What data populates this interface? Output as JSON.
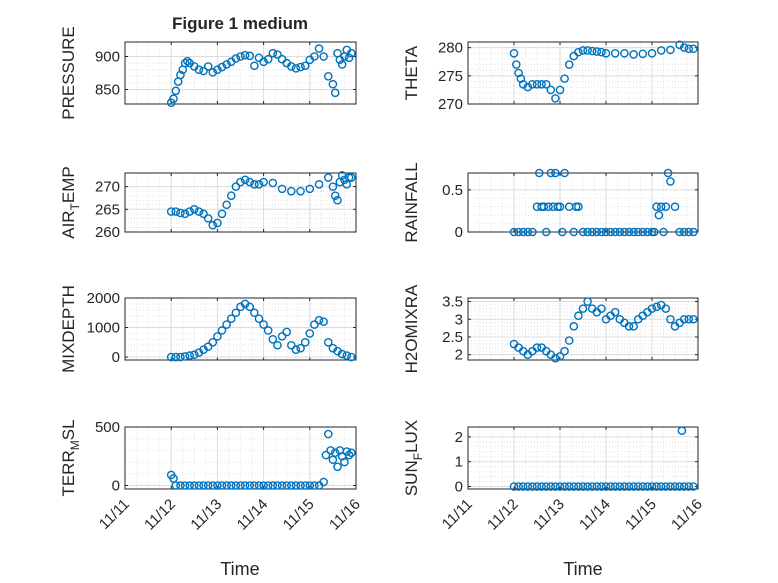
{
  "figure": {
    "title": "Figure 1 medium",
    "xlabel": "Time",
    "marker_color": "#0072bd",
    "x_ticks": [
      "11/11",
      "11/12",
      "11/13",
      "11/14",
      "11/15",
      "11/16"
    ]
  },
  "chart_data": [
    {
      "type": "scatter",
      "ylabel": "PRESSURE",
      "ylabel_sub": null,
      "xlim": [
        0,
        5
      ],
      "ylim": [
        828,
        922
      ],
      "yticks": [
        850,
        900
      ],
      "ytick_labels": [
        "850",
        "900"
      ],
      "x": [
        1.0,
        1.05,
        1.1,
        1.15,
        1.2,
        1.25,
        1.3,
        1.35,
        1.4,
        1.5,
        1.6,
        1.7,
        1.8,
        1.9,
        2.0,
        2.1,
        2.2,
        2.3,
        2.4,
        2.5,
        2.6,
        2.7,
        2.8,
        2.9,
        3.0,
        3.1,
        3.2,
        3.3,
        3.4,
        3.5,
        3.6,
        3.7,
        3.8,
        3.9,
        4.0,
        4.1,
        4.2,
        4.3,
        4.4,
        4.5,
        4.55,
        4.6,
        4.65,
        4.7,
        4.75,
        4.8,
        4.85,
        4.9
      ],
      "y": [
        830,
        836,
        848,
        862,
        872,
        880,
        890,
        893,
        890,
        885,
        880,
        878,
        885,
        876,
        880,
        884,
        888,
        892,
        897,
        900,
        902,
        901,
        886,
        898,
        892,
        896,
        905,
        903,
        896,
        890,
        885,
        882,
        884,
        886,
        895,
        900,
        912,
        900,
        870,
        858,
        845,
        905,
        895,
        888,
        900,
        910,
        898,
        905
      ]
    },
    {
      "type": "scatter",
      "ylabel": "THETA",
      "ylabel_sub": null,
      "xlim": [
        0,
        5
      ],
      "ylim": [
        270,
        281
      ],
      "yticks": [
        270,
        275,
        280
      ],
      "ytick_labels": [
        "270",
        "275",
        "280"
      ],
      "x": [
        1.0,
        1.05,
        1.1,
        1.15,
        1.2,
        1.3,
        1.4,
        1.5,
        1.6,
        1.7,
        1.8,
        1.9,
        2.0,
        2.1,
        2.2,
        2.3,
        2.4,
        2.5,
        2.6,
        2.7,
        2.8,
        2.9,
        3.0,
        3.2,
        3.4,
        3.6,
        3.8,
        4.0,
        4.2,
        4.4,
        4.6,
        4.7,
        4.8,
        4.9
      ],
      "y": [
        279.0,
        277.0,
        275.5,
        274.5,
        273.5,
        273.0,
        273.5,
        273.5,
        273.5,
        273.5,
        272.5,
        271.0,
        272.5,
        274.5,
        277.0,
        278.5,
        279.2,
        279.5,
        279.5,
        279.4,
        279.3,
        279.2,
        279.0,
        279.0,
        279.0,
        278.8,
        278.9,
        279.0,
        279.5,
        279.6,
        280.5,
        280.0,
        279.8,
        279.8
      ]
    },
    {
      "type": "scatter",
      "ylabel": "AIR",
      "ylabel_sub": "T",
      "ylabel_rest": "EMP",
      "xlim": [
        0,
        5
      ],
      "ylim": [
        260,
        273
      ],
      "yticks": [
        260,
        265,
        270
      ],
      "ytick_labels": [
        "260",
        "265",
        "270"
      ],
      "x": [
        1.0,
        1.1,
        1.2,
        1.3,
        1.4,
        1.5,
        1.6,
        1.7,
        1.8,
        1.9,
        2.0,
        2.1,
        2.2,
        2.3,
        2.4,
        2.5,
        2.6,
        2.7,
        2.8,
        2.9,
        3.0,
        3.2,
        3.4,
        3.6,
        3.8,
        4.0,
        4.2,
        4.4,
        4.5,
        4.55,
        4.6,
        4.65,
        4.7,
        4.75,
        4.8,
        4.85,
        4.9
      ],
      "y": [
        264.5,
        264.5,
        264.2,
        264.0,
        264.5,
        265.0,
        264.5,
        264.0,
        263.0,
        261.5,
        262.0,
        264.0,
        266.0,
        268.0,
        270.0,
        271.0,
        271.5,
        271.0,
        270.5,
        270.5,
        271.0,
        270.8,
        269.5,
        269.0,
        269.0,
        269.5,
        270.5,
        272.0,
        270.0,
        268.0,
        267.0,
        271.0,
        272.5,
        271.5,
        270.5,
        272.0,
        272.0
      ]
    },
    {
      "type": "scatter",
      "ylabel": "RAINFALL",
      "ylabel_sub": null,
      "xlim": [
        0,
        5
      ],
      "ylim": [
        0,
        0.7
      ],
      "yticks": [
        0,
        0.5
      ],
      "ytick_labels": [
        "0",
        "0.5"
      ],
      "x": [
        1.0,
        1.1,
        1.2,
        1.3,
        1.4,
        1.5,
        1.55,
        1.6,
        1.65,
        1.7,
        1.75,
        1.8,
        1.85,
        1.9,
        1.95,
        2.0,
        2.05,
        2.1,
        2.2,
        2.3,
        2.35,
        2.4,
        2.5,
        2.6,
        2.7,
        2.8,
        2.9,
        3.0,
        3.1,
        3.2,
        3.3,
        3.4,
        3.5,
        3.6,
        3.7,
        3.8,
        3.9,
        4.0,
        4.05,
        4.1,
        4.15,
        4.2,
        4.25,
        4.3,
        4.35,
        4.4,
        4.5,
        4.6,
        4.7,
        4.8,
        4.9
      ],
      "y": [
        0,
        0,
        0,
        0,
        0,
        0.3,
        0.7,
        0.3,
        0.3,
        0,
        0.3,
        0.7,
        0.3,
        0.7,
        0.3,
        0.3,
        0,
        0.7,
        0.3,
        0,
        0.3,
        0.3,
        0,
        0,
        0,
        0,
        0,
        0,
        0,
        0,
        0,
        0,
        0,
        0,
        0,
        0,
        0,
        0,
        0,
        0.3,
        0.2,
        0.3,
        0,
        0.3,
        0.7,
        0.6,
        0.3,
        0,
        0,
        0,
        0
      ]
    },
    {
      "type": "scatter",
      "ylabel": "MIXDEPTH",
      "ylabel_sub": null,
      "xlim": [
        0,
        5
      ],
      "ylim": [
        -100,
        2000
      ],
      "yticks": [
        0,
        1000,
        2000
      ],
      "ytick_labels": [
        "0",
        "1000",
        "2000"
      ],
      "x": [
        1.0,
        1.1,
        1.2,
        1.3,
        1.4,
        1.5,
        1.6,
        1.7,
        1.8,
        1.9,
        2.0,
        2.1,
        2.2,
        2.3,
        2.4,
        2.5,
        2.6,
        2.7,
        2.8,
        2.9,
        3.0,
        3.1,
        3.2,
        3.3,
        3.4,
        3.5,
        3.6,
        3.7,
        3.8,
        3.9,
        4.0,
        4.1,
        4.2,
        4.3,
        4.4,
        4.5,
        4.6,
        4.7,
        4.8,
        4.9
      ],
      "y": [
        0,
        0,
        0,
        20,
        50,
        80,
        150,
        250,
        350,
        500,
        700,
        900,
        1100,
        1300,
        1500,
        1700,
        1800,
        1700,
        1500,
        1300,
        1100,
        900,
        600,
        400,
        700,
        850,
        400,
        250,
        300,
        500,
        800,
        1100,
        1250,
        1200,
        500,
        300,
        200,
        100,
        50,
        0
      ]
    },
    {
      "type": "scatter",
      "ylabel": "H2OMIXRA",
      "ylabel_sub": null,
      "xlim": [
        0,
        5
      ],
      "ylim": [
        1.85,
        3.6
      ],
      "yticks": [
        2,
        2.5,
        3,
        3.5
      ],
      "ytick_labels": [
        "2",
        "2.5",
        "3",
        "3.5"
      ],
      "x": [
        1.0,
        1.1,
        1.2,
        1.3,
        1.4,
        1.5,
        1.6,
        1.7,
        1.8,
        1.9,
        2.0,
        2.1,
        2.2,
        2.3,
        2.4,
        2.5,
        2.6,
        2.7,
        2.8,
        2.9,
        3.0,
        3.1,
        3.2,
        3.3,
        3.4,
        3.5,
        3.6,
        3.7,
        3.8,
        3.9,
        4.0,
        4.1,
        4.2,
        4.3,
        4.4,
        4.5,
        4.6,
        4.7,
        4.8,
        4.9
      ],
      "y": [
        2.3,
        2.2,
        2.1,
        2.0,
        2.1,
        2.2,
        2.2,
        2.1,
        2.0,
        1.9,
        1.95,
        2.1,
        2.4,
        2.8,
        3.1,
        3.3,
        3.5,
        3.3,
        3.2,
        3.3,
        3.0,
        3.1,
        3.2,
        3.0,
        2.9,
        2.8,
        2.8,
        3.0,
        3.1,
        3.2,
        3.3,
        3.35,
        3.4,
        3.3,
        3.0,
        2.8,
        2.9,
        3.0,
        3.0,
        3.0
      ]
    },
    {
      "type": "scatter",
      "ylabel": "TERR",
      "ylabel_sub": "M",
      "ylabel_rest": "SL",
      "xlim": [
        0,
        5
      ],
      "ylim": [
        -30,
        500
      ],
      "yticks": [
        0,
        500
      ],
      "ytick_labels": [
        "0",
        "500"
      ],
      "x": [
        1.0,
        1.05,
        1.1,
        1.2,
        1.3,
        1.4,
        1.5,
        1.6,
        1.7,
        1.8,
        1.9,
        2.0,
        2.1,
        2.2,
        2.3,
        2.4,
        2.5,
        2.6,
        2.7,
        2.8,
        2.9,
        3.0,
        3.1,
        3.2,
        3.3,
        3.4,
        3.5,
        3.6,
        3.7,
        3.8,
        3.9,
        4.0,
        4.1,
        4.2,
        4.3,
        4.35,
        4.4,
        4.45,
        4.5,
        4.55,
        4.6,
        4.65,
        4.7,
        4.75,
        4.8,
        4.85,
        4.9
      ],
      "y": [
        90,
        60,
        0,
        0,
        0,
        0,
        0,
        0,
        0,
        0,
        0,
        0,
        0,
        0,
        0,
        0,
        0,
        0,
        0,
        0,
        0,
        0,
        0,
        0,
        0,
        0,
        0,
        0,
        0,
        0,
        0,
        0,
        0,
        0,
        30,
        260,
        440,
        300,
        220,
        280,
        160,
        300,
        250,
        200,
        290,
        260,
        280
      ]
    },
    {
      "type": "scatter",
      "ylabel": "SUN",
      "ylabel_sub": "F",
      "ylabel_rest": "LUX",
      "xlim": [
        0,
        5
      ],
      "ylim": [
        -0.1,
        2.4
      ],
      "yticks": [
        0,
        1,
        2
      ],
      "ytick_labels": [
        "0",
        "1",
        "2"
      ],
      "x": [
        1.0,
        1.1,
        1.2,
        1.3,
        1.4,
        1.5,
        1.6,
        1.7,
        1.8,
        1.9,
        2.0,
        2.1,
        2.2,
        2.3,
        2.4,
        2.5,
        2.6,
        2.7,
        2.8,
        2.9,
        3.0,
        3.1,
        3.2,
        3.3,
        3.4,
        3.5,
        3.6,
        3.7,
        3.8,
        3.9,
        4.0,
        4.1,
        4.2,
        4.3,
        4.4,
        4.5,
        4.6,
        4.65,
        4.7,
        4.8,
        4.9
      ],
      "y": [
        0,
        0,
        0,
        0,
        0,
        0,
        0,
        0,
        0,
        0,
        0,
        0,
        0,
        0,
        0,
        0,
        0,
        0,
        0,
        0,
        0,
        0,
        0,
        0,
        0,
        0,
        0,
        0,
        0,
        0,
        0,
        0,
        0,
        0,
        0,
        0,
        0,
        2.25,
        0,
        0,
        0
      ]
    }
  ]
}
